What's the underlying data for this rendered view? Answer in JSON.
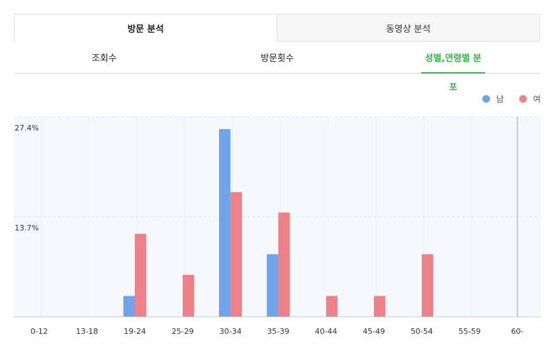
{
  "tabs": {
    "top": [
      {
        "label": "방문 분석",
        "active": true
      },
      {
        "label": "동영상 분석",
        "active": false
      }
    ],
    "sub": [
      {
        "label": "조회수",
        "active": false
      },
      {
        "label": "방문횟수",
        "active": false
      },
      {
        "label": "성별,연령별 분포",
        "active": true
      }
    ]
  },
  "colors": {
    "male": "#6fa5e8",
    "female": "#ee8088",
    "accent": "#3bb54a"
  },
  "chart_data": {
    "type": "bar",
    "categories": [
      "0-12",
      "13-18",
      "19-24",
      "25-29",
      "30-34",
      "35-39",
      "40-44",
      "45-49",
      "50-54",
      "55-59",
      "60-"
    ],
    "series": [
      {
        "name": "남",
        "values": [
          0,
          0,
          3.0,
          0,
          27.4,
          9.1,
          0,
          0,
          0,
          0,
          0
        ]
      },
      {
        "name": "여",
        "values": [
          0,
          0,
          12.1,
          6.1,
          18.2,
          15.2,
          3.0,
          3.0,
          9.1,
          0,
          0
        ]
      }
    ],
    "yticks": [
      "27.4%",
      "13.7%"
    ],
    "ylim": [
      0,
      27.4
    ],
    "legend": "top-right",
    "grid": true
  }
}
